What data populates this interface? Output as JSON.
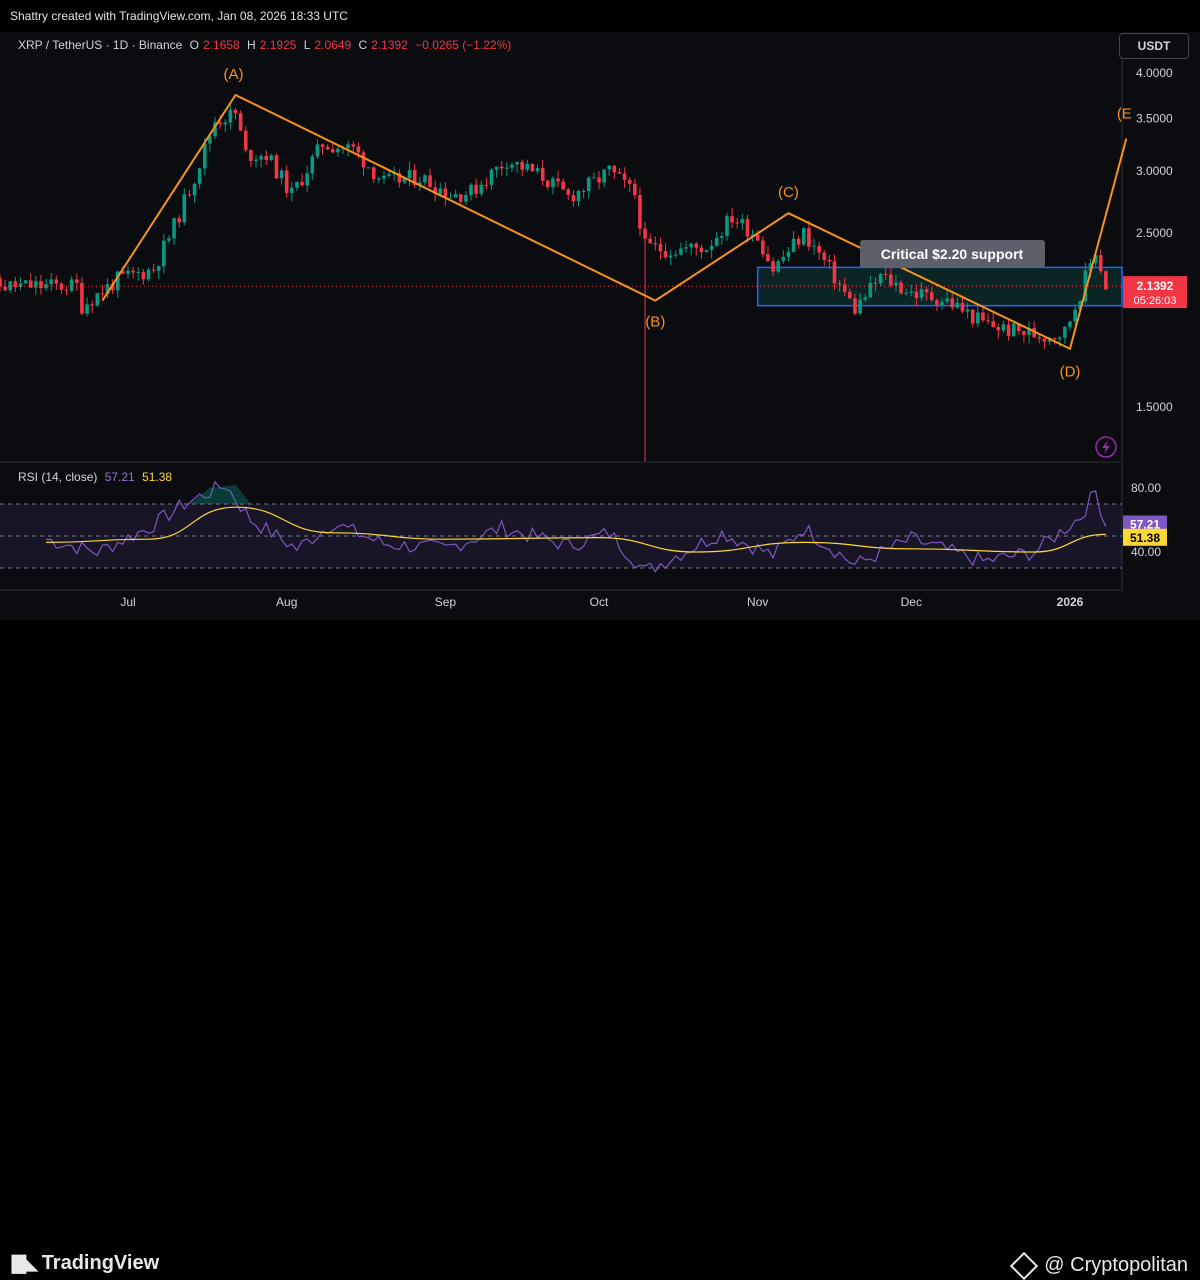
{
  "header": {
    "creator_text": "Shattry created with TradingView.com, Jan 08, 2026 18:33 UTC"
  },
  "legend": {
    "symbol": "XRP / TetherUS · 1D · Binance",
    "open_label": "O",
    "open": "2.1658",
    "high_label": "H",
    "high": "2.1925",
    "low_label": "L",
    "low": "2.0649",
    "close_label": "C",
    "close": "2.1392",
    "change": "−0.0265 (−1.22%)"
  },
  "currency_button": "USDT",
  "rsi_legend": {
    "label": "RSI (14, close)",
    "rsi": "57.21",
    "ma": "51.38"
  },
  "chart_data": [
    {
      "type": "candlestick",
      "x_ticks": [
        "Jul",
        "Aug",
        "Sep",
        "Oct",
        "Nov",
        "Dec",
        "2026"
      ],
      "y_ticks": [
        "4.0000",
        "3.5000",
        "3.0000",
        "2.5000",
        "1.5000"
      ],
      "scale": "log",
      "grid": false,
      "last_price": "2.1392",
      "countdown": "05:26:03",
      "colors": {
        "up": "#089981",
        "down": "#f23645",
        "wave": "#f7931a",
        "zone": "#2962ff"
      },
      "path_points": [
        {
          "date": "2025-06-22",
          "close": 2.02
        },
        {
          "date": "2025-06-29",
          "close": 2.18
        },
        {
          "date": "2025-07-06",
          "close": 2.25
        },
        {
          "date": "2025-07-10",
          "close": 2.55
        },
        {
          "date": "2025-07-14",
          "close": 2.95
        },
        {
          "date": "2025-07-18",
          "close": 3.48
        },
        {
          "date": "2025-07-22",
          "close": 3.55
        },
        {
          "date": "2025-07-24",
          "close": 3.15
        },
        {
          "date": "2025-07-28",
          "close": 3.15
        },
        {
          "date": "2025-08-02",
          "close": 2.8
        },
        {
          "date": "2025-08-08",
          "close": 3.25
        },
        {
          "date": "2025-08-14",
          "close": 3.2
        },
        {
          "date": "2025-08-20",
          "close": 2.9
        },
        {
          "date": "2025-08-27",
          "close": 2.95
        },
        {
          "date": "2025-09-02",
          "close": 2.8
        },
        {
          "date": "2025-09-06",
          "close": 2.82
        },
        {
          "date": "2025-09-13",
          "close": 3.1
        },
        {
          "date": "2025-09-20",
          "close": 2.95
        },
        {
          "date": "2025-09-25",
          "close": 2.78
        },
        {
          "date": "2025-09-30",
          "close": 2.9
        },
        {
          "date": "2025-10-03",
          "close": 3.0
        },
        {
          "date": "2025-10-08",
          "close": 2.8
        },
        {
          "date": "2025-10-10",
          "close": 2.4
        },
        {
          "date": "2025-10-15",
          "close": 2.38
        },
        {
          "date": "2025-10-22",
          "close": 2.4
        },
        {
          "date": "2025-10-27",
          "close": 2.62
        },
        {
          "date": "2025-11-01",
          "close": 2.48
        },
        {
          "date": "2025-11-04",
          "close": 2.25
        },
        {
          "date": "2025-11-10",
          "close": 2.5
        },
        {
          "date": "2025-11-14",
          "close": 2.3
        },
        {
          "date": "2025-11-20",
          "close": 2.0
        },
        {
          "date": "2025-11-25",
          "close": 2.2
        },
        {
          "date": "2025-12-01",
          "close": 2.1
        },
        {
          "date": "2025-12-08",
          "close": 2.05
        },
        {
          "date": "2025-12-15",
          "close": 1.92
        },
        {
          "date": "2025-12-20",
          "close": 1.88
        },
        {
          "date": "2025-12-27",
          "close": 1.85
        },
        {
          "date": "2025-12-31",
          "close": 1.87
        },
        {
          "date": "2026-01-03",
          "close": 2.1
        },
        {
          "date": "2026-01-06",
          "close": 2.38
        },
        {
          "date": "2026-01-08",
          "close": 2.14
        }
      ],
      "wave_points": [
        {
          "label": "",
          "date": "2025-06-26",
          "price": 2.05
        },
        {
          "label": "(A)",
          "date": "2025-07-22",
          "price": 3.75
        },
        {
          "label": "(B)",
          "date": "2025-10-12",
          "price": 2.05
        },
        {
          "label": "(C)",
          "date": "2025-11-07",
          "price": 2.65
        },
        {
          "label": "(D)",
          "date": "2026-01-01",
          "price": 1.78
        },
        {
          "label": "(E",
          "date": "2026-01-12",
          "price": 3.3
        }
      ],
      "support_zone": {
        "low": 2.02,
        "high": 2.26,
        "label": "Critical $2.20 support"
      }
    },
    {
      "type": "line",
      "name": "RSI (14, close)",
      "y_ticks": [
        "80.00",
        "40.00"
      ],
      "upper_band": 70,
      "lower_band": 30,
      "last_rsi": "57.21",
      "last_ma": "51.38",
      "rsi_points": [
        {
          "date": "2025-06-15",
          "value": 48
        },
        {
          "date": "2025-06-25",
          "value": 40
        },
        {
          "date": "2025-07-05",
          "value": 55
        },
        {
          "date": "2025-07-12",
          "value": 70
        },
        {
          "date": "2025-07-20",
          "value": 82
        },
        {
          "date": "2025-07-25",
          "value": 60
        },
        {
          "date": "2025-08-03",
          "value": 42
        },
        {
          "date": "2025-08-10",
          "value": 58
        },
        {
          "date": "2025-08-20",
          "value": 45
        },
        {
          "date": "2025-09-01",
          "value": 42
        },
        {
          "date": "2025-09-12",
          "value": 55
        },
        {
          "date": "2025-09-25",
          "value": 44
        },
        {
          "date": "2025-10-03",
          "value": 52
        },
        {
          "date": "2025-10-10",
          "value": 28
        },
        {
          "date": "2025-10-25",
          "value": 52
        },
        {
          "date": "2025-11-04",
          "value": 38
        },
        {
          "date": "2025-11-10",
          "value": 55
        },
        {
          "date": "2025-11-20",
          "value": 32
        },
        {
          "date": "2025-12-01",
          "value": 48
        },
        {
          "date": "2025-12-15",
          "value": 34
        },
        {
          "date": "2025-12-25",
          "value": 40
        },
        {
          "date": "2026-01-03",
          "value": 62
        },
        {
          "date": "2026-01-06",
          "value": 78
        },
        {
          "date": "2026-01-08",
          "value": 57
        }
      ],
      "ma_points": [
        {
          "date": "2025-06-15",
          "value": 46
        },
        {
          "date": "2025-07-05",
          "value": 48
        },
        {
          "date": "2025-07-22",
          "value": 68
        },
        {
          "date": "2025-08-10",
          "value": 52
        },
        {
          "date": "2025-09-01",
          "value": 48
        },
        {
          "date": "2025-10-01",
          "value": 49
        },
        {
          "date": "2025-10-20",
          "value": 40
        },
        {
          "date": "2025-11-10",
          "value": 46
        },
        {
          "date": "2025-12-01",
          "value": 42
        },
        {
          "date": "2025-12-25",
          "value": 40
        },
        {
          "date": "2026-01-08",
          "value": 51
        }
      ]
    }
  ],
  "footer": {
    "tv_logo_text": "TradingView",
    "cp_logo_text": "@ Cryptopolitan"
  }
}
